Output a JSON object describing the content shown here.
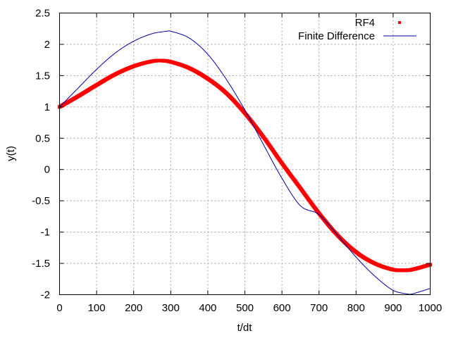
{
  "chart_data": {
    "type": "line",
    "xlabel": "t/dt",
    "ylabel": "y(t)",
    "xlim": [
      0,
      1000
    ],
    "ylim": [
      -2,
      2.5
    ],
    "xticks": [
      0,
      100,
      200,
      300,
      400,
      500,
      600,
      700,
      800,
      900,
      1000
    ],
    "yticks": [
      -2,
      -1.5,
      -1,
      -0.5,
      0,
      0.5,
      1,
      1.5,
      2,
      2.5
    ],
    "xtick_labels": [
      "0",
      "100",
      "200",
      "300",
      "400",
      "500",
      "600",
      "700",
      "800",
      "900",
      "1000"
    ],
    "ytick_labels": [
      "-2",
      "-1.5",
      "-1",
      "-0.5",
      "0",
      "0.5",
      "1",
      "1.5",
      "2",
      "2.5"
    ],
    "grid": true,
    "legend_position": "top-right",
    "series": [
      {
        "name": "RF4",
        "style": "points",
        "color": "#ff0000",
        "x": [
          0,
          50,
          100,
          150,
          200,
          250,
          275,
          300,
          350,
          400,
          450,
          500,
          550,
          600,
          650,
          700,
          750,
          800,
          850,
          900,
          930,
          950,
          1000
        ],
        "y": [
          1.0,
          1.17,
          1.35,
          1.52,
          1.65,
          1.73,
          1.74,
          1.72,
          1.62,
          1.45,
          1.22,
          0.9,
          0.52,
          0.1,
          -0.3,
          -0.7,
          -1.05,
          -1.32,
          -1.5,
          -1.6,
          -1.61,
          -1.6,
          -1.52
        ]
      },
      {
        "name": "Finite Difference",
        "style": "line",
        "color": "#0000a0",
        "x": [
          0,
          50,
          100,
          150,
          200,
          250,
          290,
          300,
          350,
          400,
          450,
          500,
          550,
          600,
          650,
          700,
          750,
          800,
          850,
          900,
          940,
          950,
          1000
        ],
        "y": [
          1.0,
          1.3,
          1.6,
          1.86,
          2.05,
          2.17,
          2.21,
          2.21,
          2.1,
          1.84,
          1.44,
          0.95,
          0.4,
          -0.14,
          -0.58,
          -0.72,
          -1.05,
          -1.4,
          -1.7,
          -1.93,
          -1.99,
          -1.99,
          -1.9
        ]
      }
    ]
  }
}
